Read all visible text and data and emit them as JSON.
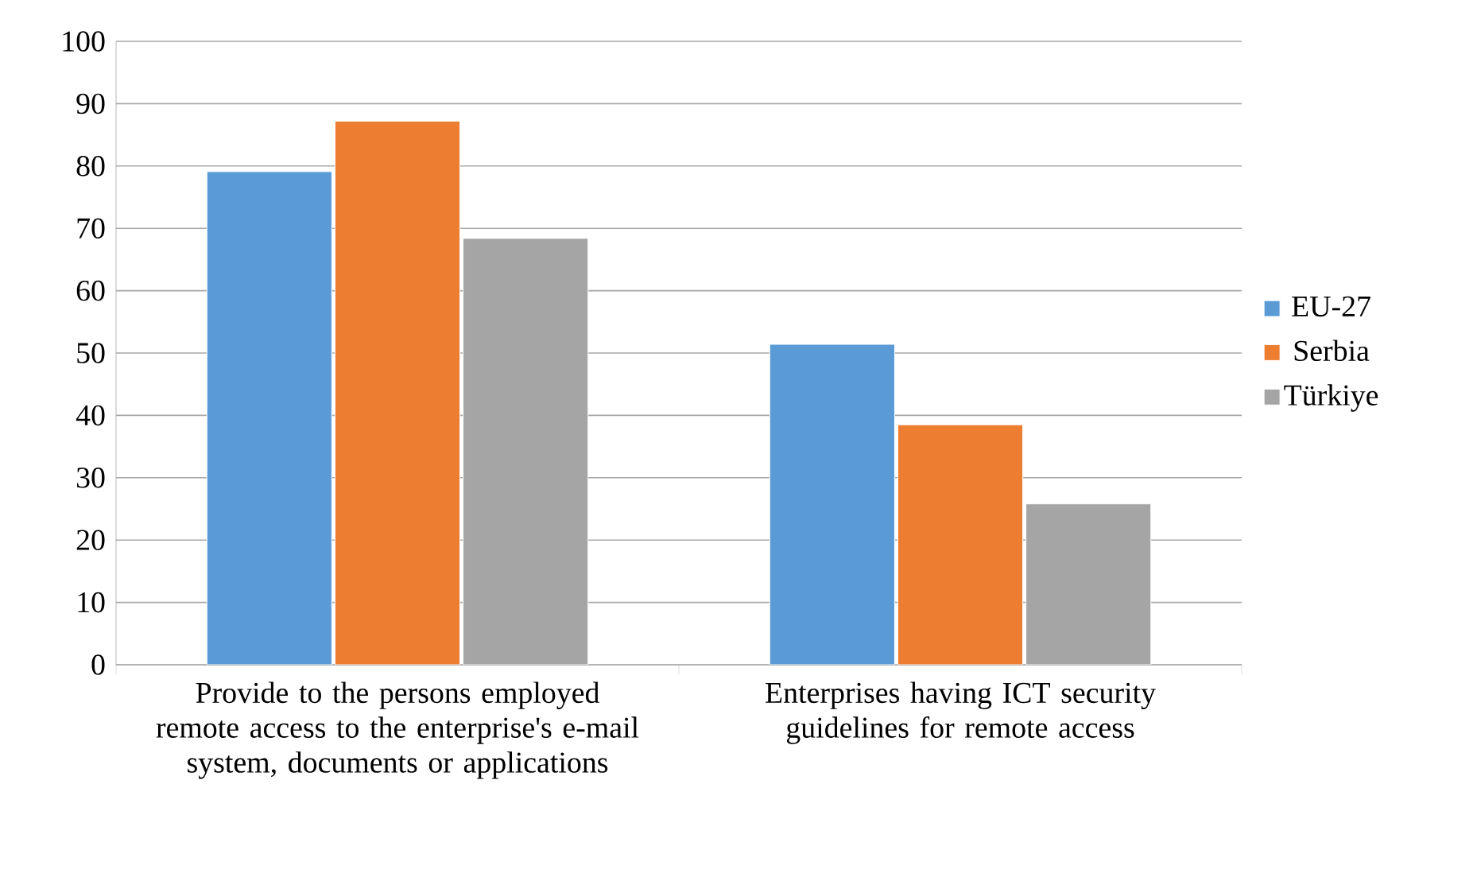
{
  "chart_data": {
    "type": "bar",
    "categories": [
      "Provide to the persons employed remote access to the enterprise's e-mail system, documents or applications",
      "Enterprises having ICT security guidelines for remote access"
    ],
    "series": [
      {
        "name": "EU-27",
        "color": "#5b9bd5",
        "values": [
          79.1,
          51.4
        ]
      },
      {
        "name": "Serbia",
        "color": "#ed7d31",
        "values": [
          87.2,
          38.5
        ]
      },
      {
        "name": "Türkiye",
        "color": "#a5a5a5",
        "values": [
          68.4,
          25.8
        ]
      }
    ],
    "ylim": [
      0,
      100
    ],
    "yticks": [
      0,
      10,
      20,
      30,
      40,
      50,
      60,
      70,
      80,
      90,
      100
    ],
    "grid": "y",
    "legend": "right"
  }
}
